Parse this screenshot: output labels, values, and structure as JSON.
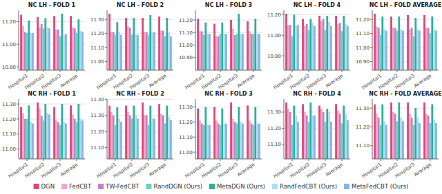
{
  "chart_data": [
    {
      "type": "bar",
      "title": "NC LH - FOLD 1",
      "categories": [
        "Hospital1",
        "Hospital2",
        "Hospital3",
        "Average"
      ],
      "grid": true,
      "legend": "bottom",
      "ylim": [
        10.77,
        11.3
      ],
      "yticks": [
        {
          "value": 10.8,
          "label": "10.80"
        },
        {
          "value": 11.0,
          "label": "11.00"
        },
        {
          "value": 11.2,
          "label": "11.20"
        }
      ],
      "series": [
        {
          "name": "DGN",
          "color": "#e0457b",
          "values": [
            11.26,
            11.24,
            11.25,
            11.25
          ]
        },
        {
          "name": "FedCBT",
          "color": "#f4a7c3",
          "values": [
            11.16,
            11.15,
            11.13,
            11.15
          ]
        },
        {
          "name": "TW-FedCBT",
          "color": "#c77dca",
          "values": [
            11.11,
            11.18,
            11.13,
            11.14
          ]
        },
        {
          "name": "RandDGN (Ours)",
          "color": "#6ecfbf",
          "values": [
            11.1,
            11.14,
            11.07,
            11.1
          ]
        },
        {
          "name": "MetaDGN (Ours)",
          "color": "#2baf9e",
          "values": [
            11.21,
            11.23,
            11.27,
            11.22
          ]
        },
        {
          "name": "RandFedCBT (Ours)",
          "color": "#a8dff0",
          "values": [
            11.1,
            11.15,
            11.08,
            11.12
          ]
        },
        {
          "name": "MetaFedCBT (Ours)",
          "color": "#8ab4e8",
          "values": [
            11.1,
            11.14,
            11.09,
            11.11
          ]
        }
      ]
    },
    {
      "type": "bar",
      "title": "NC LH - FOLD 2",
      "categories": [
        "Hospital1",
        "Hospital2",
        "Hospital3",
        "Average"
      ],
      "grid": true,
      "legend": "bottom",
      "ylim": [
        10.94,
        11.364
      ],
      "yticks": [
        {
          "value": 11.0,
          "label": "11.00"
        },
        {
          "value": 11.1,
          "label": "11.10"
        },
        {
          "value": 11.2,
          "label": "11.20"
        },
        {
          "value": 11.3,
          "label": "11.30"
        }
      ],
      "series": [
        {
          "name": "DGN",
          "color": "#e0457b",
          "values": [
            11.34,
            11.31,
            11.31,
            11.32
          ]
        },
        {
          "name": "FedCBT",
          "color": "#f4a7c3",
          "values": [
            11.21,
            11.25,
            11.21,
            11.22
          ]
        },
        {
          "name": "TW-FedCBT",
          "color": "#c77dca",
          "values": [
            11.21,
            11.24,
            11.21,
            11.22
          ]
        },
        {
          "name": "RandDGN (Ours)",
          "color": "#6ecfbf",
          "values": [
            11.19,
            11.19,
            11.19,
            11.18
          ]
        },
        {
          "name": "MetaDGN (Ours)",
          "color": "#2baf9e",
          "values": [
            11.28,
            11.31,
            11.33,
            11.31
          ]
        },
        {
          "name": "RandFedCBT (Ours)",
          "color": "#a8dff0",
          "values": [
            11.21,
            11.19,
            11.21,
            11.21
          ]
        },
        {
          "name": "MetaFedCBT (Ours)",
          "color": "#8ab4e8",
          "values": [
            11.19,
            11.19,
            11.21,
            11.18
          ]
        }
      ]
    },
    {
      "type": "bar",
      "title": "NC LH - FOLD 3",
      "categories": [
        "Hospital1",
        "Hospital2",
        "Hospital3",
        "Average"
      ],
      "grid": true,
      "legend": "bottom",
      "ylim": [
        10.8,
        11.277
      ],
      "yticks": [
        {
          "value": 10.9,
          "label": "10.90"
        },
        {
          "value": 11.0,
          "label": "11.00"
        },
        {
          "value": 11.1,
          "label": "11.10"
        },
        {
          "value": 11.2,
          "label": "11.20"
        }
      ],
      "series": [
        {
          "name": "DGN",
          "color": "#e0457b",
          "values": [
            11.21,
            11.17,
            11.2,
            11.19
          ]
        },
        {
          "name": "FedCBT",
          "color": "#f4a7c3",
          "values": [
            11.11,
            11.07,
            11.13,
            11.11
          ]
        },
        {
          "name": "TW-FedCBT",
          "color": "#c77dca",
          "values": [
            11.11,
            11.07,
            11.08,
            11.09
          ]
        },
        {
          "name": "RandDGN (Ours)",
          "color": "#6ecfbf",
          "values": [
            11.08,
            11.09,
            11.09,
            11.09
          ]
        },
        {
          "name": "MetaDGN (Ours)",
          "color": "#2baf9e",
          "values": [
            11.18,
            11.18,
            11.25,
            11.21
          ]
        },
        {
          "name": "RandFedCBT (Ours)",
          "color": "#a8dff0",
          "values": [
            11.09,
            11.09,
            11.09,
            11.09
          ]
        },
        {
          "name": "MetaFedCBT (Ours)",
          "color": "#8ab4e8",
          "values": [
            11.09,
            11.09,
            11.09,
            11.09
          ]
        }
      ]
    },
    {
      "type": "bar",
      "title": "NC LH - FOLD 4",
      "categories": [
        "Hospital1",
        "Hospital2",
        "Hospital3",
        "Average"
      ],
      "grid": true,
      "legend": "bottom",
      "ylim": [
        10.66,
        11.243
      ],
      "yticks": [
        {
          "value": 10.8,
          "label": "10.80"
        },
        {
          "value": 11.0,
          "label": "11.00"
        },
        {
          "value": 11.2,
          "label": "11.20"
        }
      ],
      "series": [
        {
          "name": "DGN",
          "color": "#e0457b",
          "values": [
            11.21,
            11.16,
            11.19,
            11.19
          ]
        },
        {
          "name": "FedCBT",
          "color": "#f4a7c3",
          "values": [
            11.1,
            11.09,
            11.14,
            11.11
          ]
        },
        {
          "name": "TW-FedCBT",
          "color": "#c77dca",
          "values": [
            11.1,
            11.11,
            11.16,
            11.12
          ]
        },
        {
          "name": "RandDGN (Ours)",
          "color": "#6ecfbf",
          "values": [
            10.99,
            11.05,
            11.05,
            11.04
          ]
        },
        {
          "name": "MetaDGN (Ours)",
          "color": "#2baf9e",
          "values": [
            11.2,
            11.16,
            11.19,
            11.19
          ]
        },
        {
          "name": "RandFedCBT (Ours)",
          "color": "#a8dff0",
          "values": [
            11.09,
            11.12,
            11.13,
            11.11
          ]
        },
        {
          "name": "MetaFedCBT (Ours)",
          "color": "#8ab4e8",
          "values": [
            11.1,
            11.09,
            11.09,
            11.09
          ]
        }
      ]
    },
    {
      "type": "bar",
      "title": "NC LH - FOLD AVERAGE",
      "categories": [
        "Hospital1",
        "Hospital2",
        "Hospital3",
        "Average"
      ],
      "grid": true,
      "legend": "bottom",
      "ylim": [
        10.84,
        11.264
      ],
      "yticks": [
        {
          "value": 10.9,
          "label": "10.90"
        },
        {
          "value": 11.0,
          "label": "11.00"
        },
        {
          "value": 11.1,
          "label": "11.10"
        },
        {
          "value": 11.2,
          "label": "11.20"
        }
      ],
      "series": [
        {
          "name": "DGN",
          "color": "#e0457b",
          "values": [
            11.24,
            11.22,
            11.23,
            11.23
          ]
        },
        {
          "name": "FedCBT",
          "color": "#f4a7c3",
          "values": [
            11.15,
            11.14,
            11.13,
            11.14
          ]
        },
        {
          "name": "TW-FedCBT",
          "color": "#c77dca",
          "values": [
            11.14,
            11.14,
            11.14,
            11.14
          ]
        },
        {
          "name": "RandDGN (Ours)",
          "color": "#6ecfbf",
          "values": [
            11.09,
            11.12,
            11.08,
            11.1
          ]
        },
        {
          "name": "MetaDGN (Ours)",
          "color": "#2baf9e",
          "values": [
            11.22,
            11.22,
            11.21,
            11.22
          ]
        },
        {
          "name": "RandFedCBT (Ours)",
          "color": "#a8dff0",
          "values": [
            11.13,
            11.13,
            11.13,
            11.13
          ]
        },
        {
          "name": "MetaFedCBT (Ours)",
          "color": "#8ab4e8",
          "values": [
            11.12,
            11.12,
            11.12,
            11.12
          ]
        }
      ]
    },
    {
      "type": "bar",
      "title": "NC RH - FOLD 1",
      "categories": [
        "Hospital1",
        "Hospital2",
        "Hospital3",
        "Average"
      ],
      "grid": true,
      "legend": "bottom",
      "ylim": [
        10.935,
        11.3325
      ],
      "yticks": [
        {
          "value": 11.0,
          "label": "11.00"
        },
        {
          "value": 11.1,
          "label": "11.10"
        },
        {
          "value": 11.2,
          "label": "11.20"
        },
        {
          "value": 11.3,
          "label": "11.30"
        }
      ],
      "series": [
        {
          "name": "DGN",
          "color": "#e0457b",
          "values": [
            11.28,
            11.31,
            11.28,
            11.29
          ]
        },
        {
          "name": "FedCBT",
          "color": "#f4a7c3",
          "values": [
            11.24,
            11.27,
            11.19,
            11.23
          ]
        },
        {
          "name": "TW-FedCBT",
          "color": "#c77dca",
          "values": [
            11.2,
            11.22,
            11.18,
            11.2
          ]
        },
        {
          "name": "RandDGN (Ours)",
          "color": "#6ecfbf",
          "values": [
            11.2,
            11.19,
            11.16,
            11.18
          ]
        },
        {
          "name": "MetaDGN (Ours)",
          "color": "#2baf9e",
          "values": [
            11.29,
            11.3,
            11.3,
            11.3
          ]
        },
        {
          "name": "RandFedCBT (Ours)",
          "color": "#a8dff0",
          "values": [
            11.18,
            11.24,
            11.18,
            11.2
          ]
        },
        {
          "name": "MetaFedCBT (Ours)",
          "color": "#8ab4e8",
          "values": [
            11.17,
            11.23,
            11.17,
            11.19
          ]
        }
      ]
    },
    {
      "type": "bar",
      "title": "NC RH - FOLD 2",
      "categories": [
        "Hospital1",
        "Hospital2",
        "Hospital3",
        "Average"
      ],
      "grid": true,
      "legend": "bottom",
      "ylim": [
        11.03,
        11.401
      ],
      "yticks": [
        {
          "value": 11.1,
          "label": "11.10"
        },
        {
          "value": 11.2,
          "label": "11.20"
        },
        {
          "value": 11.3,
          "label": "11.30"
        },
        {
          "value": 11.4,
          "label": "11.40"
        }
      ],
      "series": [
        {
          "name": "DGN",
          "color": "#e0457b",
          "values": [
            11.36,
            11.36,
            11.38,
            11.37
          ]
        },
        {
          "name": "FedCBT",
          "color": "#f4a7c3",
          "values": [
            11.32,
            11.32,
            11.3,
            11.31
          ]
        },
        {
          "name": "TW-FedCBT",
          "color": "#c77dca",
          "values": [
            11.3,
            11.3,
            11.3,
            11.3
          ]
        },
        {
          "name": "RandDGN (Ours)",
          "color": "#6ecfbf",
          "values": [
            11.24,
            11.28,
            11.24,
            11.25
          ]
        },
        {
          "name": "MetaDGN (Ours)",
          "color": "#2baf9e",
          "values": [
            11.35,
            11.36,
            11.36,
            11.36
          ]
        },
        {
          "name": "RandFedCBT (Ours)",
          "color": "#a8dff0",
          "values": [
            11.28,
            11.3,
            11.28,
            11.29
          ]
        },
        {
          "name": "MetaFedCBT (Ours)",
          "color": "#8ab4e8",
          "values": [
            11.26,
            11.28,
            11.28,
            11.27
          ]
        }
      ]
    },
    {
      "type": "bar",
      "title": "NC RH - FOLD 3",
      "categories": [
        "Hospital1",
        "Hospital2",
        "Hospital3",
        "Average"
      ],
      "grid": true,
      "legend": "bottom",
      "ylim": [
        10.955,
        11.3525
      ],
      "yticks": [
        {
          "value": 11.0,
          "label": "11.00"
        },
        {
          "value": 11.1,
          "label": "11.10"
        },
        {
          "value": 11.2,
          "label": "11.20"
        },
        {
          "value": 11.3,
          "label": "11.30"
        }
      ],
      "series": [
        {
          "name": "DGN",
          "color": "#e0457b",
          "values": [
            11.29,
            11.3,
            11.33,
            11.31
          ]
        },
        {
          "name": "FedCBT",
          "color": "#f4a7c3",
          "values": [
            11.21,
            11.21,
            11.22,
            11.21
          ]
        },
        {
          "name": "TW-FedCBT",
          "color": "#c77dca",
          "values": [
            11.19,
            11.19,
            11.2,
            11.19
          ]
        },
        {
          "name": "RandDGN (Ours)",
          "color": "#6ecfbf",
          "values": [
            11.18,
            11.18,
            11.19,
            11.18
          ]
        },
        {
          "name": "MetaDGN (Ours)",
          "color": "#2baf9e",
          "values": [
            11.3,
            11.29,
            11.3,
            11.3
          ]
        },
        {
          "name": "RandFedCBT (Ours)",
          "color": "#a8dff0",
          "values": [
            11.18,
            11.19,
            11.2,
            11.19
          ]
        },
        {
          "name": "MetaFedCBT (Ours)",
          "color": "#8ab4e8",
          "values": [
            11.18,
            11.19,
            11.19,
            11.19
          ]
        }
      ]
    },
    {
      "type": "bar",
      "title": "NC RH - FOLD 4",
      "categories": [
        "Hospital1",
        "Hospital2",
        "Hospital3",
        "Average"
      ],
      "grid": true,
      "legend": "bottom",
      "ylim": [
        11.01,
        11.381
      ],
      "yticks": [
        {
          "value": 11.1,
          "label": "11.10"
        },
        {
          "value": 11.2,
          "label": "11.20"
        },
        {
          "value": 11.3,
          "label": "11.30"
        }
      ],
      "series": [
        {
          "name": "DGN",
          "color": "#e0457b",
          "values": [
            11.36,
            11.35,
            11.34,
            11.35
          ]
        },
        {
          "name": "FedCBT",
          "color": "#f4a7c3",
          "values": [
            11.32,
            11.3,
            11.32,
            11.31
          ]
        },
        {
          "name": "TW-FedCBT",
          "color": "#c77dca",
          "values": [
            11.3,
            11.28,
            11.3,
            11.29
          ]
        },
        {
          "name": "RandDGN (Ours)",
          "color": "#6ecfbf",
          "values": [
            11.22,
            11.24,
            11.24,
            11.23
          ]
        },
        {
          "name": "MetaDGN (Ours)",
          "color": "#2baf9e",
          "values": [
            11.34,
            11.36,
            11.32,
            11.34
          ]
        },
        {
          "name": "RandFedCBT (Ours)",
          "color": "#a8dff0",
          "values": [
            11.28,
            11.28,
            11.3,
            11.29
          ]
        },
        {
          "name": "MetaFedCBT (Ours)",
          "color": "#8ab4e8",
          "values": [
            11.24,
            11.28,
            11.24,
            11.25
          ]
        }
      ]
    },
    {
      "type": "bar",
      "title": "NC RH - FOLD AVERAGE",
      "categories": [
        "Hospital1",
        "Hospital2",
        "Hospital3",
        "Average"
      ],
      "grid": true,
      "legend": "bottom",
      "ylim": [
        11.03,
        11.348
      ],
      "yticks": [
        {
          "value": 11.1,
          "label": "11.10"
        },
        {
          "value": 11.2,
          "label": "11.20"
        },
        {
          "value": 11.3,
          "label": "11.30"
        }
      ],
      "series": [
        {
          "name": "DGN",
          "color": "#e0457b",
          "values": [
            11.32,
            11.33,
            11.33,
            11.33
          ]
        },
        {
          "name": "FedCBT",
          "color": "#f4a7c3",
          "values": [
            11.27,
            11.28,
            11.27,
            11.27
          ]
        },
        {
          "name": "TW-FedCBT",
          "color": "#c77dca",
          "values": [
            11.25,
            11.27,
            11.25,
            11.26
          ]
        },
        {
          "name": "RandDGN (Ours)",
          "color": "#6ecfbf",
          "values": [
            11.21,
            11.23,
            11.21,
            11.22
          ]
        },
        {
          "name": "MetaDGN (Ours)",
          "color": "#2baf9e",
          "values": [
            11.32,
            11.33,
            11.3,
            11.32
          ]
        },
        {
          "name": "RandFedCBT (Ours)",
          "color": "#a8dff0",
          "values": [
            11.23,
            11.25,
            11.25,
            11.24
          ]
        },
        {
          "name": "MetaFedCBT (Ours)",
          "color": "#8ab4e8",
          "values": [
            11.21,
            11.23,
            11.22,
            11.22
          ]
        }
      ]
    }
  ]
}
